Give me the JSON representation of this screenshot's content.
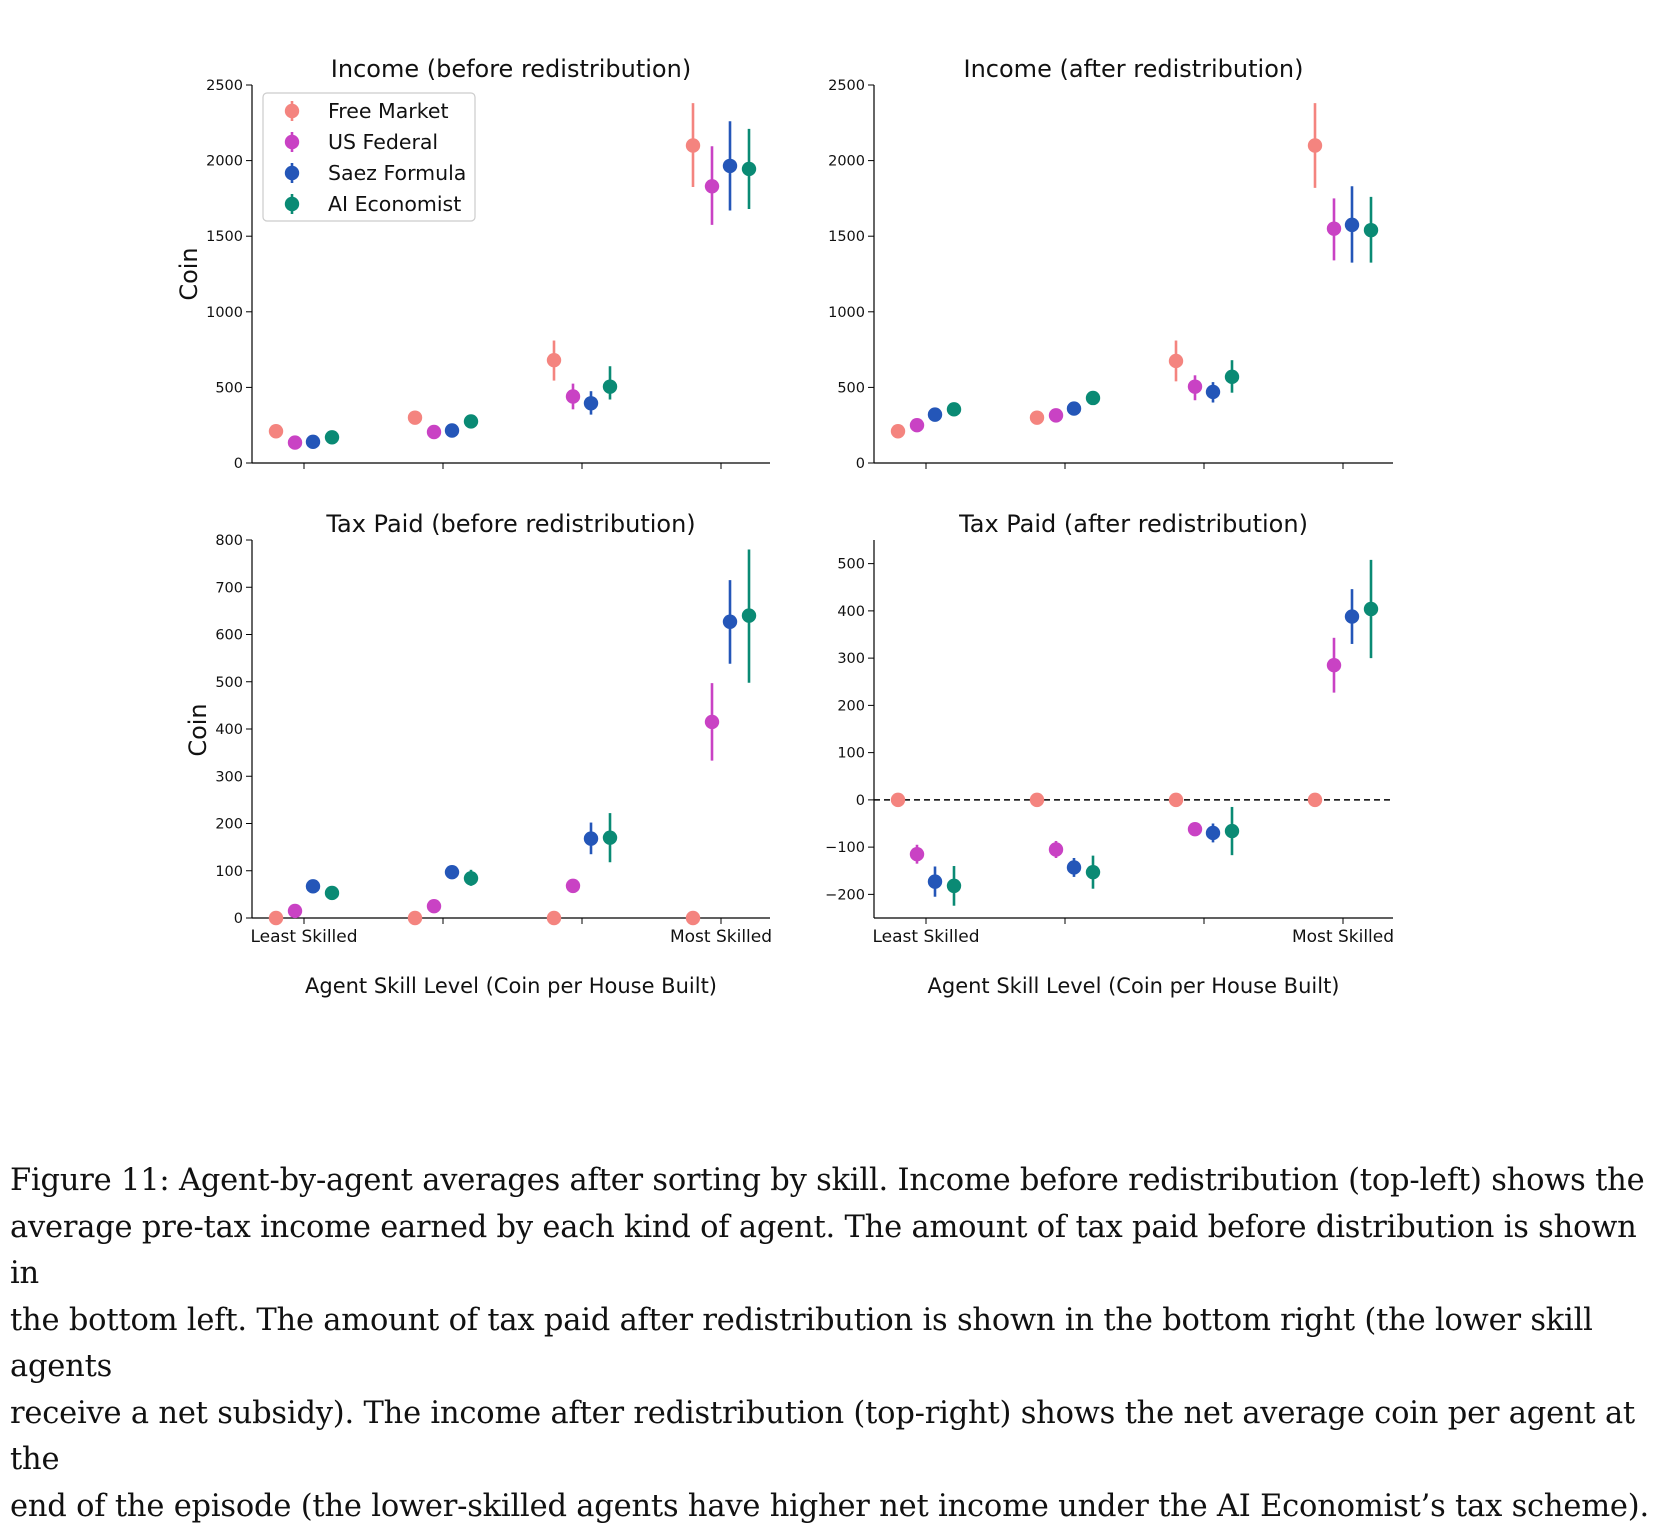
{
  "legend": {
    "placement": "upper-left of top-left panel",
    "entries": [
      {
        "name": "Free Market",
        "color": "#f4847f"
      },
      {
        "name": "US Federal",
        "color": "#c942c4"
      },
      {
        "name": "Saez Formula",
        "color": "#2456b8"
      },
      {
        "name": "AI Economist",
        "color": "#0a8a74"
      }
    ]
  },
  "chart_data": [
    {
      "type": "scatter",
      "title": "Income (before redistribution)",
      "ylabel": "Coin",
      "xlabel": "",
      "ylim": [
        0,
        2500
      ],
      "yticks": [
        0,
        500,
        1000,
        1500,
        2000,
        2500
      ],
      "x_groups": 4,
      "x_tick_labels": [],
      "show_legend": true,
      "series": [
        {
          "name": "Free Market",
          "color": "#f4847f",
          "values": [
            210,
            300,
            680,
            2100
          ],
          "err": [
            [
              210,
              210
            ],
            [
              260,
              340
            ],
            [
              545,
              810
            ],
            [
              1825,
              2380
            ]
          ]
        },
        {
          "name": "US Federal",
          "color": "#c942c4",
          "values": [
            135,
            205,
            440,
            1830
          ],
          "err": [
            [
              135,
              135
            ],
            [
              205,
              205
            ],
            [
              355,
              525
            ],
            [
              1575,
              2095
            ]
          ]
        },
        {
          "name": "Saez Formula",
          "color": "#2456b8",
          "values": [
            140,
            215,
            395,
            1965
          ],
          "err": [
            [
              140,
              140
            ],
            [
              215,
              215
            ],
            [
              320,
              475
            ],
            [
              1670,
              2260
            ]
          ]
        },
        {
          "name": "AI Economist",
          "color": "#0a8a74",
          "values": [
            170,
            275,
            505,
            1945
          ],
          "err": [
            [
              170,
              170
            ],
            [
              275,
              275
            ],
            [
              420,
              640
            ],
            [
              1680,
              2210
            ]
          ]
        }
      ]
    },
    {
      "type": "scatter",
      "title": "Income (after redistribution)",
      "ylabel": "",
      "xlabel": "",
      "ylim": [
        0,
        2500
      ],
      "yticks": [
        0,
        500,
        1000,
        1500,
        2000,
        2500
      ],
      "x_groups": 4,
      "x_tick_labels": [],
      "show_legend": false,
      "series": [
        {
          "name": "Free Market",
          "color": "#f4847f",
          "values": [
            210,
            300,
            675,
            2100
          ],
          "err": [
            [
              210,
              210
            ],
            [
              260,
              340
            ],
            [
              540,
              810
            ],
            [
              1820,
              2380
            ]
          ]
        },
        {
          "name": "US Federal",
          "color": "#c942c4",
          "values": [
            250,
            315,
            505,
            1550
          ],
          "err": [
            [
              250,
              250
            ],
            [
              315,
              315
            ],
            [
              415,
              580
            ],
            [
              1340,
              1750
            ]
          ]
        },
        {
          "name": "Saez Formula",
          "color": "#2456b8",
          "values": [
            320,
            360,
            470,
            1575
          ],
          "err": [
            [
              320,
              320
            ],
            [
              360,
              360
            ],
            [
              400,
              535
            ],
            [
              1325,
              1830
            ]
          ]
        },
        {
          "name": "AI Economist",
          "color": "#0a8a74",
          "values": [
            355,
            430,
            570,
            1540
          ],
          "err": [
            [
              355,
              355
            ],
            [
              400,
              460
            ],
            [
              465,
              680
            ],
            [
              1325,
              1760
            ]
          ]
        }
      ]
    },
    {
      "type": "scatter",
      "title": "Tax Paid (before redistribution)",
      "ylabel": "Coin",
      "xlabel": "Agent Skill Level (Coin per House Built)",
      "ylim": [
        0,
        800
      ],
      "yticks": [
        0,
        100,
        200,
        300,
        400,
        500,
        600,
        700,
        800
      ],
      "x_groups": 4,
      "x_tick_labels": [
        "Least Skilled",
        "",
        "",
        "Most Skilled"
      ],
      "show_legend": false,
      "series": [
        {
          "name": "Free Market",
          "color": "#f4847f",
          "values": [
            0,
            0,
            0,
            0
          ],
          "err": [
            [
              0,
              0
            ],
            [
              0,
              0
            ],
            [
              0,
              0
            ],
            [
              0,
              0
            ]
          ]
        },
        {
          "name": "US Federal",
          "color": "#c942c4",
          "values": [
            15,
            25,
            68,
            415
          ],
          "err": [
            [
              15,
              15
            ],
            [
              25,
              25
            ],
            [
              60,
              76
            ],
            [
              333,
              497
            ]
          ]
        },
        {
          "name": "Saez Formula",
          "color": "#2456b8",
          "values": [
            67,
            97,
            168,
            627
          ],
          "err": [
            [
              67,
              67
            ],
            [
              90,
              104
            ],
            [
              135,
              202
            ],
            [
              538,
              715
            ]
          ]
        },
        {
          "name": "AI Economist",
          "color": "#0a8a74",
          "values": [
            53,
            84,
            170,
            640
          ],
          "err": [
            [
              53,
              53
            ],
            [
              68,
              102
            ],
            [
              118,
              222
            ],
            [
              498,
              780
            ]
          ]
        }
      ]
    },
    {
      "type": "scatter",
      "title": "Tax Paid (after redistribution)",
      "ylabel": "",
      "xlabel": "Agent Skill Level (Coin per House Built)",
      "ylim": [
        -250,
        550
      ],
      "yticks": [
        -200,
        -100,
        0,
        100,
        200,
        300,
        400,
        500
      ],
      "ytick_labels": [
        "−200",
        "−100",
        "0",
        "100",
        "200",
        "300",
        "400",
        "500"
      ],
      "x_groups": 4,
      "x_tick_labels": [
        "Least Skilled",
        "",
        "",
        "Most Skilled"
      ],
      "zero_line": true,
      "show_legend": false,
      "series": [
        {
          "name": "Free Market",
          "color": "#f4847f",
          "values": [
            0,
            0,
            0,
            0
          ],
          "err": [
            [
              0,
              0
            ],
            [
              0,
              0
            ],
            [
              0,
              0
            ],
            [
              0,
              0
            ]
          ]
        },
        {
          "name": "US Federal",
          "color": "#c942c4",
          "values": [
            -115,
            -105,
            -62,
            285
          ],
          "err": [
            [
              -135,
              -95
            ],
            [
              -123,
              -87
            ],
            [
              -75,
              -49
            ],
            [
              227,
              343
            ]
          ]
        },
        {
          "name": "Saez Formula",
          "color": "#2456b8",
          "values": [
            -173,
            -143,
            -70,
            388
          ],
          "err": [
            [
              -205,
              -141
            ],
            [
              -163,
              -123
            ],
            [
              -90,
              -50
            ],
            [
              330,
              446
            ]
          ]
        },
        {
          "name": "AI Economist",
          "color": "#0a8a74",
          "values": [
            -182,
            -153,
            -66,
            404
          ],
          "err": [
            [
              -224,
              -140
            ],
            [
              -188,
              -118
            ],
            [
              -117,
              -15
            ],
            [
              300,
              508
            ]
          ]
        }
      ]
    }
  ],
  "caption": [
    "Figure 11: Agent-by-agent averages after sorting by skill. Income before redistribution (top-left) shows the",
    "average pre-tax income earned by each kind of agent. The amount of tax paid before distribution is shown in",
    "the bottom left. The amount of tax paid after redistribution is shown in the bottom right (the lower skill agents",
    "receive a net subsidy). The income after redistribution (top-right) shows the net average coin per agent at the",
    "end of the episode (the lower-skilled agents have higher net income under the AI Economist’s tax scheme)."
  ]
}
